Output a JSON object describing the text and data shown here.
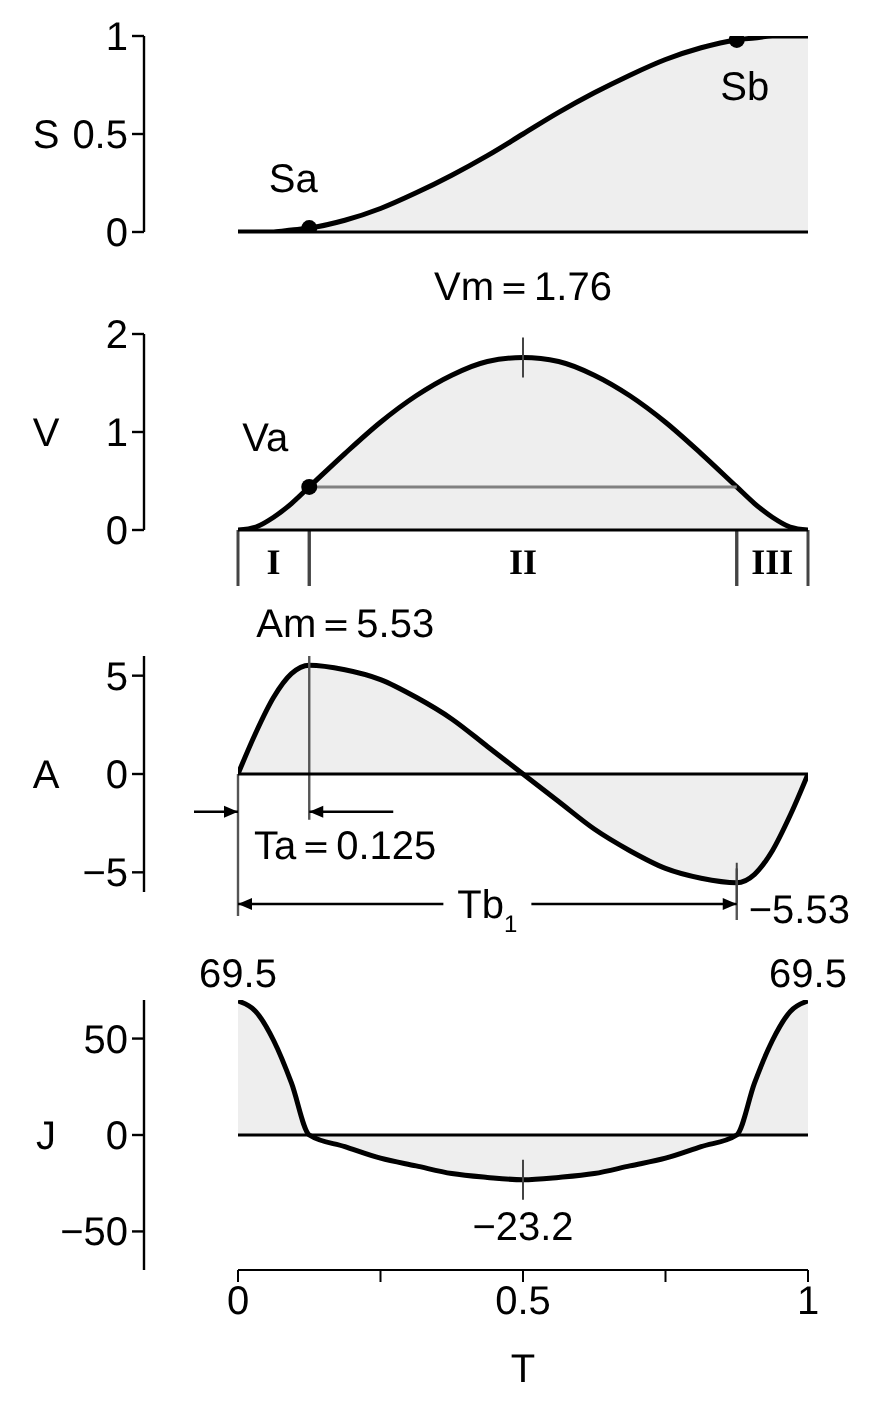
{
  "chart_data": [
    {
      "type": "area",
      "ylabel": "S",
      "xlim": [
        0,
        1
      ],
      "ylim": [
        0,
        1
      ],
      "yticks": [
        0,
        0.5,
        1
      ],
      "tick_labels": "y",
      "x": [
        0,
        0.03125,
        0.0625,
        0.09375,
        0.125,
        0.1875,
        0.25,
        0.3125,
        0.375,
        0.4375,
        0.5,
        0.5625,
        0.625,
        0.6875,
        0.75,
        0.8125,
        0.875,
        0.90625,
        0.9375,
        0.96875,
        1
      ],
      "series": [
        {
          "type": "area",
          "color": "#000000",
          "values": [
            0,
            0,
            0,
            0.01,
            0.02,
            0.06,
            0.12,
            0.2,
            0.29,
            0.39,
            0.5,
            0.61,
            0.71,
            0.8,
            0.88,
            0.94,
            0.98,
            0.99,
            1,
            1,
            1
          ]
        },
        {
          "type": "scatter",
          "color": "#000000",
          "values": [
            null,
            null,
            null,
            null,
            0.02,
            null,
            null,
            null,
            null,
            null,
            null,
            null,
            null,
            null,
            null,
            null,
            0.98,
            null,
            null,
            null,
            null
          ]
        }
      ],
      "annotations": [
        {
          "text": "Sa",
          "x": 0.125,
          "y": 0.02
        },
        {
          "text": "Sb",
          "x": 0.875,
          "y": 0.98
        }
      ]
    },
    {
      "type": "area",
      "ylabel": "V",
      "xlim": [
        0,
        1
      ],
      "ylim": [
        0,
        2
      ],
      "yticks": [
        0,
        1,
        2
      ],
      "tick_labels": "y",
      "x": [
        0,
        0.03125,
        0.0625,
        0.09375,
        0.125,
        0.1875,
        0.25,
        0.3125,
        0.375,
        0.4375,
        0.5,
        0.5625,
        0.625,
        0.6875,
        0.75,
        0.8125,
        0.875,
        0.90625,
        0.9375,
        0.96875,
        1
      ],
      "series": [
        {
          "type": "area",
          "color": "#000000",
          "values": [
            0,
            0.03,
            0.13,
            0.27,
            0.44,
            0.78,
            1.1,
            1.37,
            1.58,
            1.72,
            1.76,
            1.72,
            1.58,
            1.37,
            1.1,
            0.78,
            0.44,
            0.27,
            0.13,
            0.03,
            0
          ]
        },
        {
          "type": "line",
          "color": "#808080",
          "values": [
            null,
            null,
            null,
            null,
            0.44,
            0.44,
            0.44,
            0.44,
            0.44,
            0.44,
            0.44,
            0.44,
            0.44,
            0.44,
            0.44,
            0.44,
            0.44,
            null,
            null,
            null,
            null
          ]
        },
        {
          "type": "scatter",
          "color": "#000000",
          "values": [
            null,
            null,
            null,
            null,
            0.44,
            null,
            null,
            null,
            null,
            null,
            null,
            null,
            null,
            null,
            null,
            null,
            null,
            null,
            null,
            null,
            null
          ]
        }
      ],
      "annotations": [
        {
          "text": "Vm＝1.76",
          "x": 0.5,
          "y": 1.76
        },
        {
          "text": "Va",
          "x": 0.125,
          "y": 0.44
        },
        "I",
        "II",
        "III"
      ]
    },
    {
      "type": "area",
      "ylabel": "A",
      "xlim": [
        0,
        1
      ],
      "ylim": [
        -6,
        6
      ],
      "yticks": [
        {
          "value": -5,
          "label": "−5"
        },
        0,
        5
      ],
      "tick_labels": "y",
      "x": [
        0,
        0.03125,
        0.0625,
        0.09375,
        0.125,
        0.1875,
        0.25,
        0.3125,
        0.375,
        0.4375,
        0.5,
        0.5625,
        0.625,
        0.6875,
        0.75,
        0.8125,
        0.875,
        0.90625,
        0.9375,
        0.96875,
        1
      ],
      "series": [
        {
          "type": "area",
          "color": "#000000",
          "values": [
            0,
            2.1,
            3.9,
            5.1,
            5.53,
            5.3,
            4.8,
            3.9,
            2.8,
            1.4,
            0,
            -1.4,
            -2.8,
            -3.9,
            -4.8,
            -5.3,
            -5.53,
            -5.1,
            -3.9,
            -2.1,
            0
          ]
        }
      ],
      "annotations": [
        {
          "text": "Am＝5.53",
          "x": 0.125,
          "y": 5.53
        },
        {
          "text": "−5.53",
          "x": 0.875,
          "y": -5.53
        },
        "Tb$_{1}$"
      ],
      "ref_lines": [
        {
          "axis": "x",
          "value": 0.125,
          "label": "Ta＝0.125"
        },
        {
          "axis": "x",
          "value": 0.875
        }
      ]
    },
    {
      "type": "area",
      "ylabel": "J",
      "xlabel": "T",
      "xlim": [
        0,
        1
      ],
      "ylim": [
        -70,
        70
      ],
      "yticks": [
        {
          "value": -50,
          "label": "−50"
        },
        0,
        50
      ],
      "xticks": [
        0,
        {
          "value": 0.25,
          "label": null
        },
        0.5,
        {
          "value": 0.75,
          "label": null
        },
        1
      ],
      "x": [
        0,
        0.03125,
        0.0625,
        0.09375,
        0.125,
        0.1875,
        0.25,
        0.3125,
        0.375,
        0.4375,
        0.5,
        0.5625,
        0.625,
        0.6875,
        0.75,
        0.8125,
        0.875,
        0.90625,
        0.9375,
        0.96875,
        1
      ],
      "series": [
        {
          "type": "area",
          "color": "#000000",
          "values": [
            69.5,
            64,
            49,
            27,
            0,
            -6,
            -12,
            -16,
            -20,
            -22,
            -23.2,
            -22,
            -20,
            -16,
            -12,
            -6,
            0,
            27,
            49,
            64,
            69.5
          ]
        }
      ],
      "annotations": [
        {
          "text": "69.5",
          "x": 0,
          "y": 69.5
        },
        {
          "text": "69.5",
          "x": 1,
          "y": 69.5
        },
        {
          "text": "−23.2",
          "x": 0.5,
          "y": -23.2
        }
      ]
    }
  ]
}
